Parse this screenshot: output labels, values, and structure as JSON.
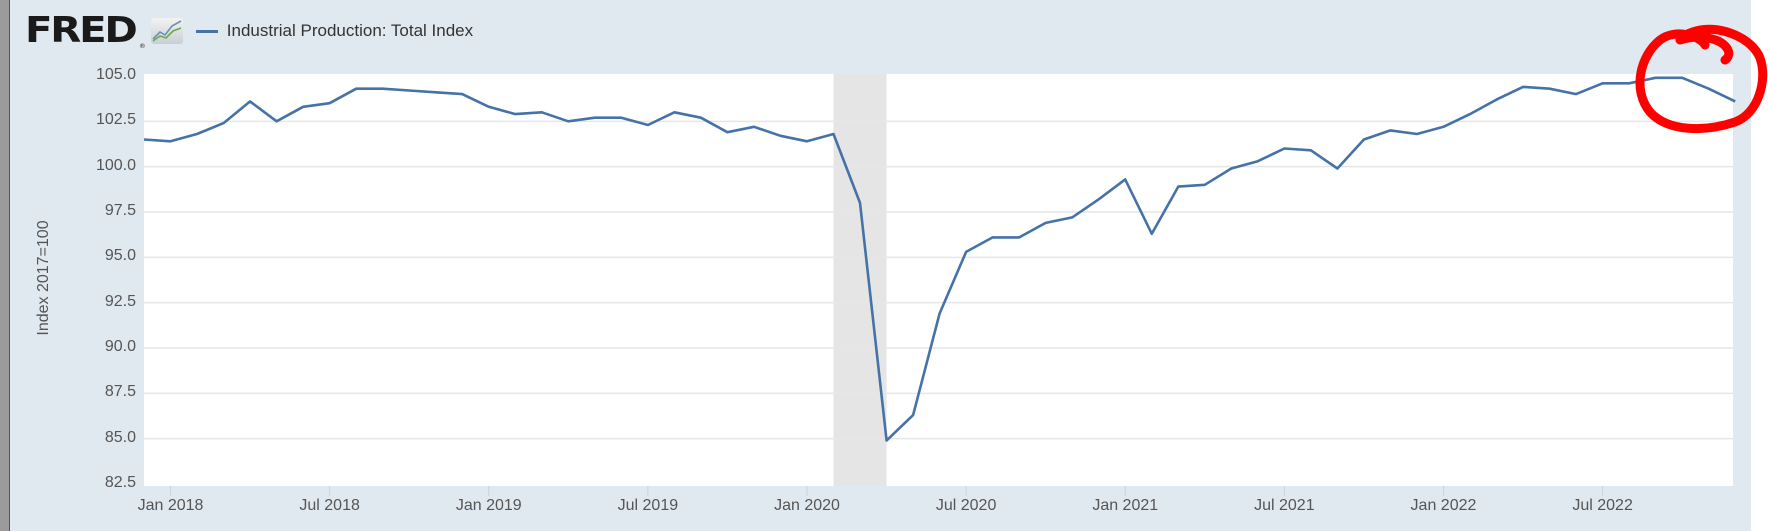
{
  "header": {
    "logo_text": "FRED",
    "logo_reg": "®",
    "legend_label": "Industrial Production: Total Index",
    "series_color": "#4572a7"
  },
  "colors": {
    "panel_bg": "#e1e9f0",
    "plot_bg": "#ffffff",
    "grid": "#e6e6e6",
    "recession": "#e5e5e5",
    "annotation": "#ff0000"
  },
  "chart_data": {
    "type": "line",
    "title": "Industrial Production: Total Index",
    "xlabel": "",
    "ylabel": "Index 2017=100",
    "ylim": [
      82.5,
      105.0
    ],
    "grid": true,
    "legend_position": "top-left",
    "y_ticks": [
      "105.0",
      "102.5",
      "100.0",
      "97.5",
      "95.0",
      "92.5",
      "90.0",
      "87.5",
      "85.0",
      "82.5"
    ],
    "x_ticks": [
      "Jan 2018",
      "Jul 2018",
      "Jan 2019",
      "Jul 2019",
      "Jan 2020",
      "Jul 2020",
      "Jan 2021",
      "Jul 2021",
      "Jan 2022",
      "Jul 2022"
    ],
    "recession_shading": {
      "start": "2020-02",
      "end": "2020-04"
    },
    "series": [
      {
        "name": "Industrial Production: Total Index",
        "x": [
          "2017-12",
          "2018-01",
          "2018-02",
          "2018-03",
          "2018-04",
          "2018-05",
          "2018-06",
          "2018-07",
          "2018-08",
          "2018-09",
          "2018-10",
          "2018-11",
          "2018-12",
          "2019-01",
          "2019-02",
          "2019-03",
          "2019-04",
          "2019-05",
          "2019-06",
          "2019-07",
          "2019-08",
          "2019-09",
          "2019-10",
          "2019-11",
          "2019-12",
          "2020-01",
          "2020-02",
          "2020-03",
          "2020-04",
          "2020-05",
          "2020-06",
          "2020-07",
          "2020-08",
          "2020-09",
          "2020-10",
          "2020-11",
          "2020-12",
          "2021-01",
          "2021-02",
          "2021-03",
          "2021-04",
          "2021-05",
          "2021-06",
          "2021-07",
          "2021-08",
          "2021-09",
          "2021-10",
          "2021-11",
          "2021-12",
          "2022-01",
          "2022-02",
          "2022-03",
          "2022-04",
          "2022-05",
          "2022-06",
          "2022-07",
          "2022-08",
          "2022-09",
          "2022-10",
          "2022-11",
          "2022-12"
        ],
        "values": [
          101.5,
          101.4,
          101.8,
          102.4,
          103.6,
          102.5,
          103.3,
          103.5,
          104.3,
          104.3,
          104.2,
          104.1,
          104.0,
          103.3,
          102.9,
          103.0,
          102.5,
          102.7,
          102.7,
          102.3,
          103.0,
          102.7,
          101.9,
          102.2,
          101.7,
          101.4,
          101.8,
          98.0,
          84.9,
          86.3,
          91.9,
          95.3,
          96.1,
          96.1,
          96.9,
          97.2,
          98.2,
          99.3,
          96.3,
          98.9,
          99.0,
          99.9,
          100.3,
          101.0,
          100.9,
          99.9,
          101.5,
          102.0,
          101.8,
          102.2,
          102.9,
          103.7,
          104.4,
          104.3,
          104.0,
          104.6,
          104.6,
          104.9,
          104.9,
          104.3,
          103.6
        ]
      }
    ]
  }
}
